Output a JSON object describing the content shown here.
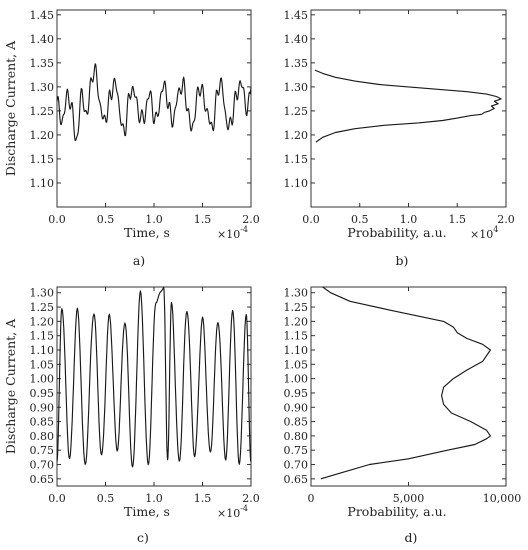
{
  "chart_data": [
    {
      "id": "a",
      "type": "line",
      "panel_label": "a)",
      "xlabel": "Time, s",
      "ylabel": "Discharge Current, A",
      "x_multiplier": "×10",
      "x_exponent": "-4",
      "xlim": [
        0,
        2.0
      ],
      "ylim": [
        1.05,
        1.46
      ],
      "xticks": [
        0,
        0.5,
        1.0,
        1.5,
        2.0
      ],
      "xtick_labels": [
        "0.0",
        "0.5",
        "1.0",
        "1.5",
        "2.0"
      ],
      "yticks": [
        1.1,
        1.15,
        1.2,
        1.25,
        1.3,
        1.35,
        1.4,
        1.45
      ],
      "ytick_labels": [
        "1.10",
        "1.15",
        "1.20",
        "1.25",
        "1.30",
        "1.35",
        "1.40",
        "1.45"
      ],
      "x": [
        0.0,
        0.05,
        0.1,
        0.15,
        0.2,
        0.25,
        0.3,
        0.35,
        0.4,
        0.45,
        0.5,
        0.55,
        0.6,
        0.65,
        0.7,
        0.75,
        0.8,
        0.85,
        0.9,
        0.95,
        1.0,
        1.05,
        1.1,
        1.15,
        1.2,
        1.25,
        1.3,
        1.35,
        1.4,
        1.45,
        1.5,
        1.55,
        1.6,
        1.65,
        1.7,
        1.75,
        1.8,
        1.85,
        1.9,
        1.95,
        2.0
      ],
      "y": [
        1.27,
        1.22,
        1.29,
        1.25,
        1.19,
        1.28,
        1.24,
        1.31,
        1.33,
        1.26,
        1.22,
        1.29,
        1.31,
        1.24,
        1.21,
        1.28,
        1.3,
        1.23,
        1.24,
        1.29,
        1.23,
        1.26,
        1.3,
        1.27,
        1.22,
        1.29,
        1.31,
        1.24,
        1.22,
        1.28,
        1.3,
        1.24,
        1.21,
        1.29,
        1.3,
        1.23,
        1.22,
        1.29,
        1.31,
        1.25,
        1.3
      ]
    },
    {
      "id": "b",
      "type": "line",
      "panel_label": "b)",
      "xlabel": "Probability, a.u.",
      "ylabel": "",
      "x_multiplier": "×10",
      "x_exponent": "4",
      "xlim": [
        0,
        2.0
      ],
      "ylim": [
        1.05,
        1.46
      ],
      "xticks": [
        0,
        0.5,
        1.0,
        1.5,
        2.0
      ],
      "xtick_labels": [
        "0.0",
        "0.5",
        "1.0",
        "1.5",
        "2.0"
      ],
      "yticks": [
        1.1,
        1.15,
        1.2,
        1.25,
        1.3,
        1.35,
        1.4,
        1.45
      ],
      "ytick_labels": [
        "1.10",
        "1.15",
        "1.20",
        "1.25",
        "1.30",
        "1.35",
        "1.40",
        "1.45"
      ],
      "x": [
        0.05,
        0.12,
        0.25,
        0.45,
        0.75,
        1.1,
        1.35,
        1.5,
        1.63,
        1.75,
        1.78,
        1.83,
        1.88,
        1.85,
        1.92,
        1.88,
        1.95,
        1.9,
        1.8,
        1.6,
        1.3,
        1.0,
        0.7,
        0.45,
        0.25,
        0.12,
        0.04
      ],
      "y": [
        1.185,
        1.195,
        1.205,
        1.213,
        1.22,
        1.225,
        1.23,
        1.235,
        1.24,
        1.243,
        1.247,
        1.25,
        1.255,
        1.26,
        1.265,
        1.27,
        1.275,
        1.28,
        1.285,
        1.29,
        1.295,
        1.3,
        1.305,
        1.312,
        1.32,
        1.328,
        1.335
      ]
    },
    {
      "id": "c",
      "type": "line",
      "panel_label": "c)",
      "xlabel": "Time, s",
      "ylabel": "Discharge Current, A",
      "x_multiplier": "×10",
      "x_exponent": "-4",
      "xlim": [
        0,
        2.0
      ],
      "ylim": [
        0.625,
        1.32
      ],
      "xticks": [
        0,
        0.5,
        1.0,
        1.5,
        2.0
      ],
      "xtick_labels": [
        "0.0",
        "0.5",
        "1.0",
        "1.5",
        "2.0"
      ],
      "yticks": [
        0.65,
        0.7,
        0.75,
        0.8,
        0.85,
        0.9,
        0.95,
        1.0,
        1.05,
        1.1,
        1.15,
        1.2,
        1.25,
        1.3
      ],
      "ytick_labels": [
        "0.65",
        "0.70",
        "0.75",
        "0.80",
        "0.85",
        "0.90",
        "0.95",
        "1.00",
        "1.05",
        "1.10",
        "1.15",
        "1.20",
        "1.25",
        "1.30"
      ],
      "peaks": [
        0.05,
        0.21,
        0.38,
        0.54,
        0.7,
        0.86,
        1.02,
        1.1,
        1.18,
        1.34,
        1.5,
        1.66,
        1.81,
        1.95
      ],
      "peak_values": [
        1.25,
        1.24,
        1.23,
        1.22,
        1.2,
        1.3,
        1.27,
        1.32,
        1.26,
        1.24,
        1.21,
        1.2,
        1.24,
        1.22
      ],
      "troughs": [
        0.0,
        0.13,
        0.29,
        0.46,
        0.62,
        0.78,
        0.94,
        1.14,
        1.26,
        1.42,
        1.58,
        1.74,
        1.88,
        2.0
      ],
      "trough_values": [
        0.71,
        0.72,
        0.7,
        0.73,
        0.75,
        0.69,
        0.7,
        0.72,
        0.71,
        0.73,
        0.74,
        0.72,
        0.7,
        0.71
      ]
    },
    {
      "id": "d",
      "type": "line",
      "panel_label": "d)",
      "xlabel": "Probability, a.u.",
      "ylabel": "",
      "xlim": [
        0,
        10000
      ],
      "ylim": [
        0.625,
        1.32
      ],
      "xticks": [
        0,
        5000,
        10000
      ],
      "xtick_labels": [
        "0",
        "5,000",
        "10,000"
      ],
      "yticks": [
        0.65,
        0.7,
        0.75,
        0.8,
        0.85,
        0.9,
        0.95,
        1.0,
        1.05,
        1.1,
        1.15,
        1.2,
        1.25,
        1.3
      ],
      "ytick_labels": [
        "0.65",
        "0.70",
        "0.75",
        "0.80",
        "0.85",
        "0.90",
        "0.95",
        "1.00",
        "1.05",
        "1.10",
        "1.15",
        "1.20",
        "1.25",
        "1.30"
      ],
      "x": [
        500,
        1500,
        3000,
        5000,
        7000,
        8400,
        9000,
        9200,
        9000,
        8200,
        7200,
        6800,
        6700,
        6800,
        7300,
        8000,
        8800,
        9200,
        8800,
        8000,
        7500,
        7300,
        6800,
        4000,
        2000,
        1000,
        600
      ],
      "y": [
        0.65,
        0.67,
        0.7,
        0.72,
        0.75,
        0.77,
        0.79,
        0.8,
        0.82,
        0.85,
        0.88,
        0.91,
        0.94,
        0.97,
        1.0,
        1.03,
        1.06,
        1.1,
        1.12,
        1.14,
        1.16,
        1.18,
        1.2,
        1.24,
        1.27,
        1.3,
        1.32
      ]
    }
  ]
}
